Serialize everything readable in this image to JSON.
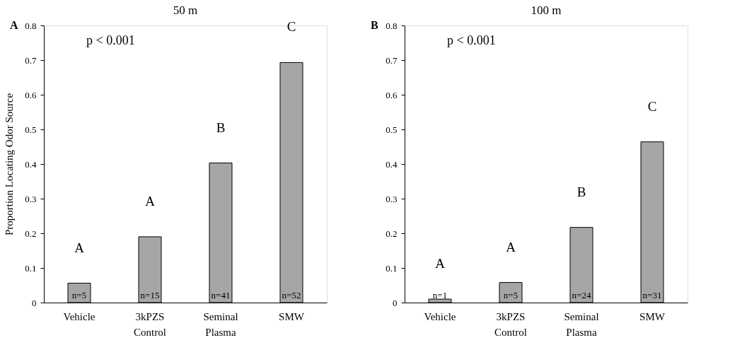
{
  "chart_data": [
    {
      "type": "bar",
      "title": "50 m",
      "ylabel": "Proportion Locating Odor Source",
      "categories": [
        "Vehicle",
        "3kPZS Control",
        "Seminal Plasma",
        "SMW"
      ],
      "values": [
        0.056,
        0.19,
        0.403,
        0.693
      ],
      "color": "#a6a6a6",
      "ylim": [
        0,
        0.8
      ],
      "yticks": [
        0,
        0.1,
        0.2,
        0.3,
        0.4,
        0.5,
        0.6,
        0.7,
        0.8
      ],
      "grid": false,
      "annotations": [
        "A",
        "p < 0.001",
        "A",
        "A",
        "B",
        "C",
        "n=5",
        "n=15",
        "n=41",
        "n=52"
      ]
    },
    {
      "type": "bar",
      "title": "100 m",
      "categories": [
        "Vehicle",
        "3kPZS Control",
        "Seminal Plasma",
        "SMW"
      ],
      "values": [
        0.01,
        0.058,
        0.217,
        0.464
      ],
      "color": "#a6a6a6",
      "ylim": [
        0,
        0.8
      ],
      "yticks": [
        0,
        0.1,
        0.2,
        0.3,
        0.4,
        0.5,
        0.6,
        0.7,
        0.8
      ],
      "grid": false,
      "annotations": [
        "B",
        "p < 0.001",
        "A",
        "A",
        "B",
        "C",
        "n=1",
        "n=5",
        "n=24",
        "n=31"
      ]
    }
  ]
}
